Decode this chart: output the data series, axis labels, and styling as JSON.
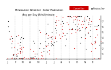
{
  "title": "Milwaukee Weather  Solar Radiation",
  "subtitle": "Avg per Day W/m2/minute",
  "ylim": [
    0,
    8
  ],
  "yticks": [
    1,
    2,
    3,
    4,
    5,
    6,
    7
  ],
  "background_color": "#ffffff",
  "grid_color": "#bbbbbb",
  "dot_color_current": "#cc0000",
  "dot_color_previous": "#000000",
  "legend_label_current": "Current Year",
  "legend_label_previous": "Previous Year",
  "month_positions": [
    0,
    31,
    59,
    90,
    120,
    151,
    181,
    212,
    243,
    273,
    304,
    334
  ],
  "month_labels": [
    "J",
    "F",
    "M",
    "A",
    "M",
    "J",
    "J",
    "A",
    "S",
    "O",
    "N",
    "D"
  ],
  "seed": 42,
  "n_current": 120,
  "n_previous": 110
}
